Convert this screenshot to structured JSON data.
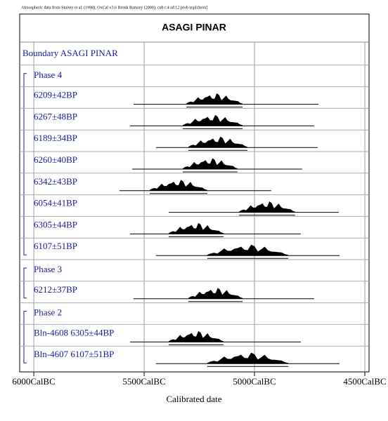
{
  "chart_data": {
    "type": "multiplot",
    "note": "Atmospheric data from Stuiver et al. (1998); OxCal v3.6 Bronk Ramsey (2000); cub r:4 sd:12 prob usp[chron]",
    "title": "ASAGI PINAR",
    "x_label": "Calibrated date",
    "boundary": "Boundary ASAGI PINAR",
    "xlim": [
      -6064,
      -4481
    ],
    "xticks": [
      {
        "value": -6000,
        "label": "6000CalBC"
      },
      {
        "value": -5500,
        "label": "5500CalBC"
      },
      {
        "value": -5000,
        "label": "5000CalBC"
      },
      {
        "value": -4500,
        "label": "4500CalBC"
      }
    ],
    "grid": true,
    "color": "#000000",
    "phases": [
      {
        "name": "Phase 4",
        "samples": [
          {
            "label": "6209±42BP",
            "extent": [
              -5548,
              -4710
            ],
            "peak": [
              -5309,
              -5054
            ]
          },
          {
            "label": "6267±48BP",
            "extent": [
              -5564,
              -4730
            ],
            "peak": [
              -5325,
              -5054
            ]
          },
          {
            "label": "6189±34BP",
            "extent": [
              -5446,
              -4714
            ],
            "peak": [
              -5300,
              -5032
            ]
          },
          {
            "label": "6260±40BP",
            "extent": [
              -5554,
              -4784
            ],
            "peak": [
              -5325,
              -5077
            ]
          },
          {
            "label": "6342±43BP",
            "extent": [
              -5612,
              -4924
            ],
            "peak": [
              -5475,
              -5214
            ]
          },
          {
            "label": "6054±41BP",
            "extent": [
              -5389,
              -4618
            ],
            "peak": [
              -5070,
              -4816
            ]
          },
          {
            "label": "6305±44BP",
            "extent": [
              -5564,
              -4790
            ],
            "peak": [
              -5389,
              -5140
            ]
          },
          {
            "label": "6107±51BP",
            "extent": [
              -5446,
              -4615
            ],
            "peak": [
              -5214,
              -4847
            ]
          }
        ]
      },
      {
        "name": "Phase 3",
        "samples": [
          {
            "label": "6212±37BP",
            "extent": [
              -5548,
              -4730
            ],
            "peak": [
              -5300,
              -5054
            ]
          }
        ]
      },
      {
        "name": "Phase 2",
        "samples": [
          {
            "label": "Bln-4608  6305±44BP",
            "extent": [
              -5564,
              -4790
            ],
            "peak": [
              -5389,
              -5140
            ]
          },
          {
            "label": "Bln-4607  6107±51BP",
            "extent": [
              -5446,
              -4615
            ],
            "peak": [
              -5214,
              -4847
            ]
          }
        ]
      }
    ]
  }
}
